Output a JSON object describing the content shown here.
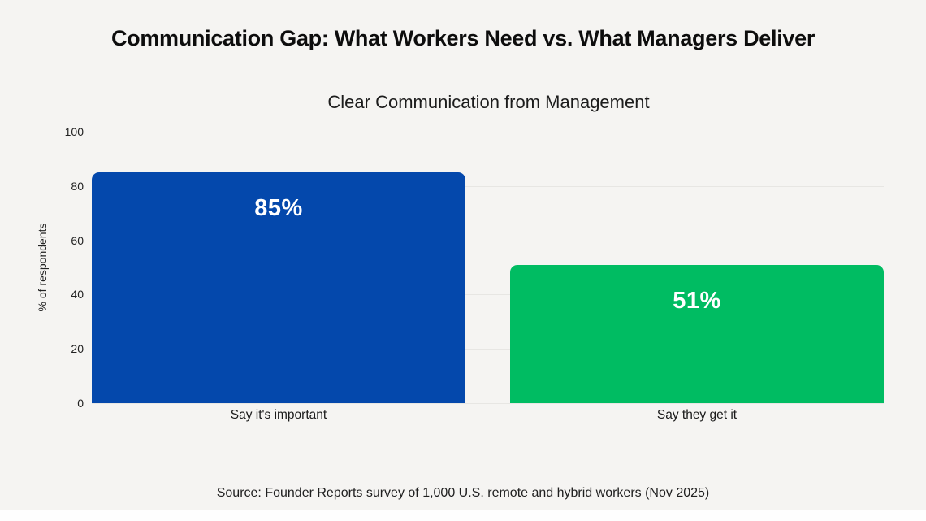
{
  "page": {
    "title": "Communication Gap: What Workers Need vs. What Managers Deliver",
    "source": "Source: Founder Reports survey of 1,000 U.S. remote and hybrid workers (Nov 2025)",
    "background_color": "#f5f4f2"
  },
  "chart_data": {
    "type": "bar",
    "title": "Clear Communication from Management",
    "categories": [
      "Say it's important",
      "Say they get it"
    ],
    "values": [
      85,
      51
    ],
    "value_labels": [
      "85%",
      "51%"
    ],
    "bar_colors": [
      "#0448ac",
      "#00bc62"
    ],
    "xlabel": "",
    "ylabel": "% of respondents",
    "yticks": [
      0,
      20,
      40,
      60,
      80,
      100
    ],
    "ylim": [
      0,
      100
    ],
    "grid": true,
    "gridline_color": "#e7e6e3",
    "legend": "none"
  }
}
